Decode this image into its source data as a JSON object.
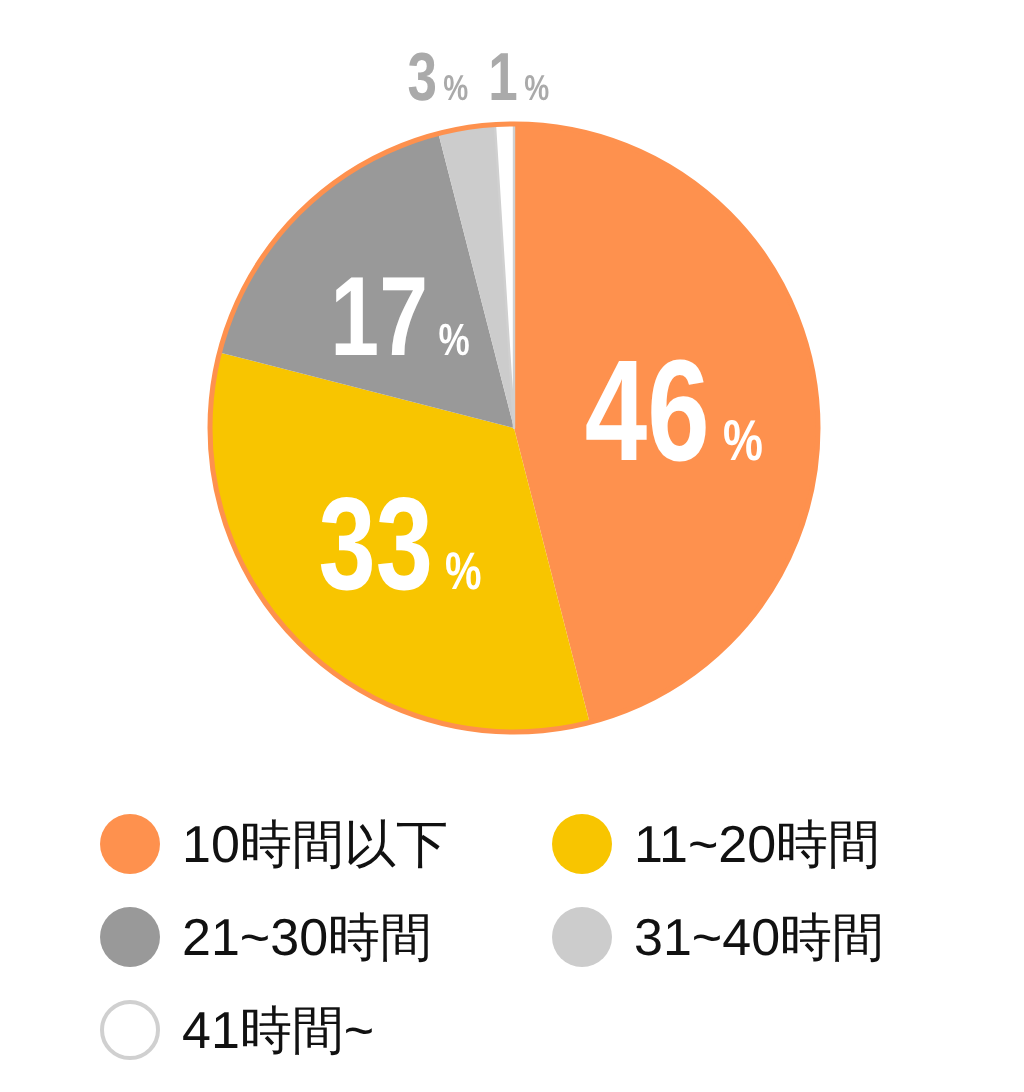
{
  "chart_data": {
    "type": "pie",
    "categories": [
      "10時間以下",
      "11~20時間",
      "21~30時間",
      "31~40時間",
      "41時間~"
    ],
    "values": [
      46,
      33,
      17,
      3,
      1
    ],
    "colors": [
      "#fe914e",
      "#f8c500",
      "#999999",
      "#cccccc",
      "#ffffff"
    ],
    "value_labels": [
      "46%",
      "33%",
      "17%",
      "3%",
      "1%"
    ],
    "legend": "bottom"
  }
}
